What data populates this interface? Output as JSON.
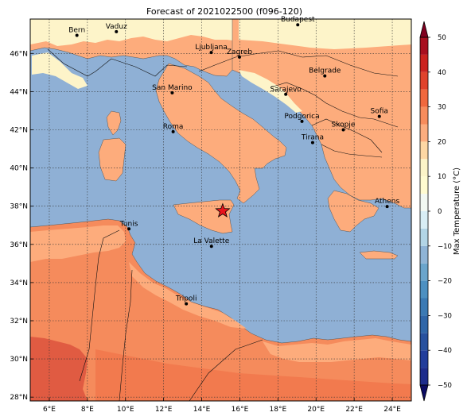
{
  "title": "Forecast of 2021022500 (f096-120)",
  "map": {
    "lon_range": [
      5,
      25
    ],
    "lat_range": [
      27.8,
      47.8
    ],
    "lon_ticks": [
      {
        "value": 6,
        "label": "6°E"
      },
      {
        "value": 8,
        "label": "8°E"
      },
      {
        "value": 10,
        "label": "10°E"
      },
      {
        "value": 12,
        "label": "12°E"
      },
      {
        "value": 14,
        "label": "14°E"
      },
      {
        "value": 16,
        "label": "16°E"
      },
      {
        "value": 18,
        "label": "18°E"
      },
      {
        "value": 20,
        "label": "20°E"
      },
      {
        "value": 22,
        "label": "22°E"
      },
      {
        "value": 24,
        "label": "24°E"
      }
    ],
    "lat_ticks": [
      {
        "value": 28,
        "label": "28°N"
      },
      {
        "value": 30,
        "label": "30°N"
      },
      {
        "value": 32,
        "label": "32°N"
      },
      {
        "value": 34,
        "label": "34°N"
      },
      {
        "value": 36,
        "label": "36°N"
      },
      {
        "value": 38,
        "label": "38°N"
      },
      {
        "value": 40,
        "label": "40°N"
      },
      {
        "value": 42,
        "label": "42°N"
      },
      {
        "value": 44,
        "label": "44°N"
      },
      {
        "value": 46,
        "label": "46°N"
      }
    ],
    "grid": true,
    "cities": [
      {
        "name": "Bern",
        "lon": 7.45,
        "lat": 46.95
      },
      {
        "name": "Vaduz",
        "lon": 9.52,
        "lat": 47.14
      },
      {
        "name": "Budapest",
        "lon": 19.04,
        "lat": 47.5
      },
      {
        "name": "Ljubljana",
        "lon": 14.5,
        "lat": 46.05
      },
      {
        "name": "Zagreb",
        "lon": 15.98,
        "lat": 45.81
      },
      {
        "name": "Belgrade",
        "lon": 20.46,
        "lat": 44.82
      },
      {
        "name": "San Marino",
        "lon": 12.45,
        "lat": 43.94
      },
      {
        "name": "Sarajevo",
        "lon": 18.41,
        "lat": 43.86
      },
      {
        "name": "Sofia",
        "lon": 23.32,
        "lat": 42.7
      },
      {
        "name": "Podgorica",
        "lon": 19.26,
        "lat": 42.44
      },
      {
        "name": "Skopje",
        "lon": 21.43,
        "lat": 42.0
      },
      {
        "name": "Roma",
        "lon": 12.5,
        "lat": 41.9
      },
      {
        "name": "Tirana",
        "lon": 19.82,
        "lat": 41.33
      },
      {
        "name": "Athens",
        "lon": 23.73,
        "lat": 37.98
      },
      {
        "name": "Tunis",
        "lon": 10.18,
        "lat": 36.81
      },
      {
        "name": "La Valette",
        "lon": 14.51,
        "lat": 35.9
      },
      {
        "name": "Tripoli",
        "lon": 13.19,
        "lat": 32.89
      }
    ],
    "marker": {
      "symbol": "star",
      "lon": 15.1,
      "lat": 37.75,
      "color": "#e8141c"
    }
  },
  "colorbar": {
    "label": "Max Temperature (°C)",
    "ticks": [
      -50,
      -40,
      -30,
      -20,
      -10,
      0,
      10,
      20,
      30,
      40,
      50
    ],
    "levels": [
      -55,
      -50,
      -45,
      -40,
      -35,
      -30,
      -25,
      -20,
      -15,
      -10,
      -5,
      0,
      5,
      10,
      15,
      20,
      25,
      30,
      35,
      40,
      45,
      50,
      55
    ],
    "colors": [
      "#0b0b63",
      "#1d2c8c",
      "#223d9b",
      "#27519e",
      "#2f66a8",
      "#3b7ab4",
      "#4d90c1",
      "#6ba5cc",
      "#8fb4d6",
      "#b2d5e6",
      "#d9eef5",
      "#f2f8f2",
      "#fffbd0",
      "#fcf4c8",
      "#fdd7a4",
      "#fcad7f",
      "#f78c5c",
      "#f0683d",
      "#e0432d",
      "#cb2320",
      "#a80f20",
      "#800020"
    ]
  },
  "colors": {
    "sea": "#8fb0d5",
    "land_cool": "#fdf4c9",
    "land_mild": "#fdac7c",
    "land_warm": "#f58b5c",
    "land_hot": "#e05b42"
  }
}
